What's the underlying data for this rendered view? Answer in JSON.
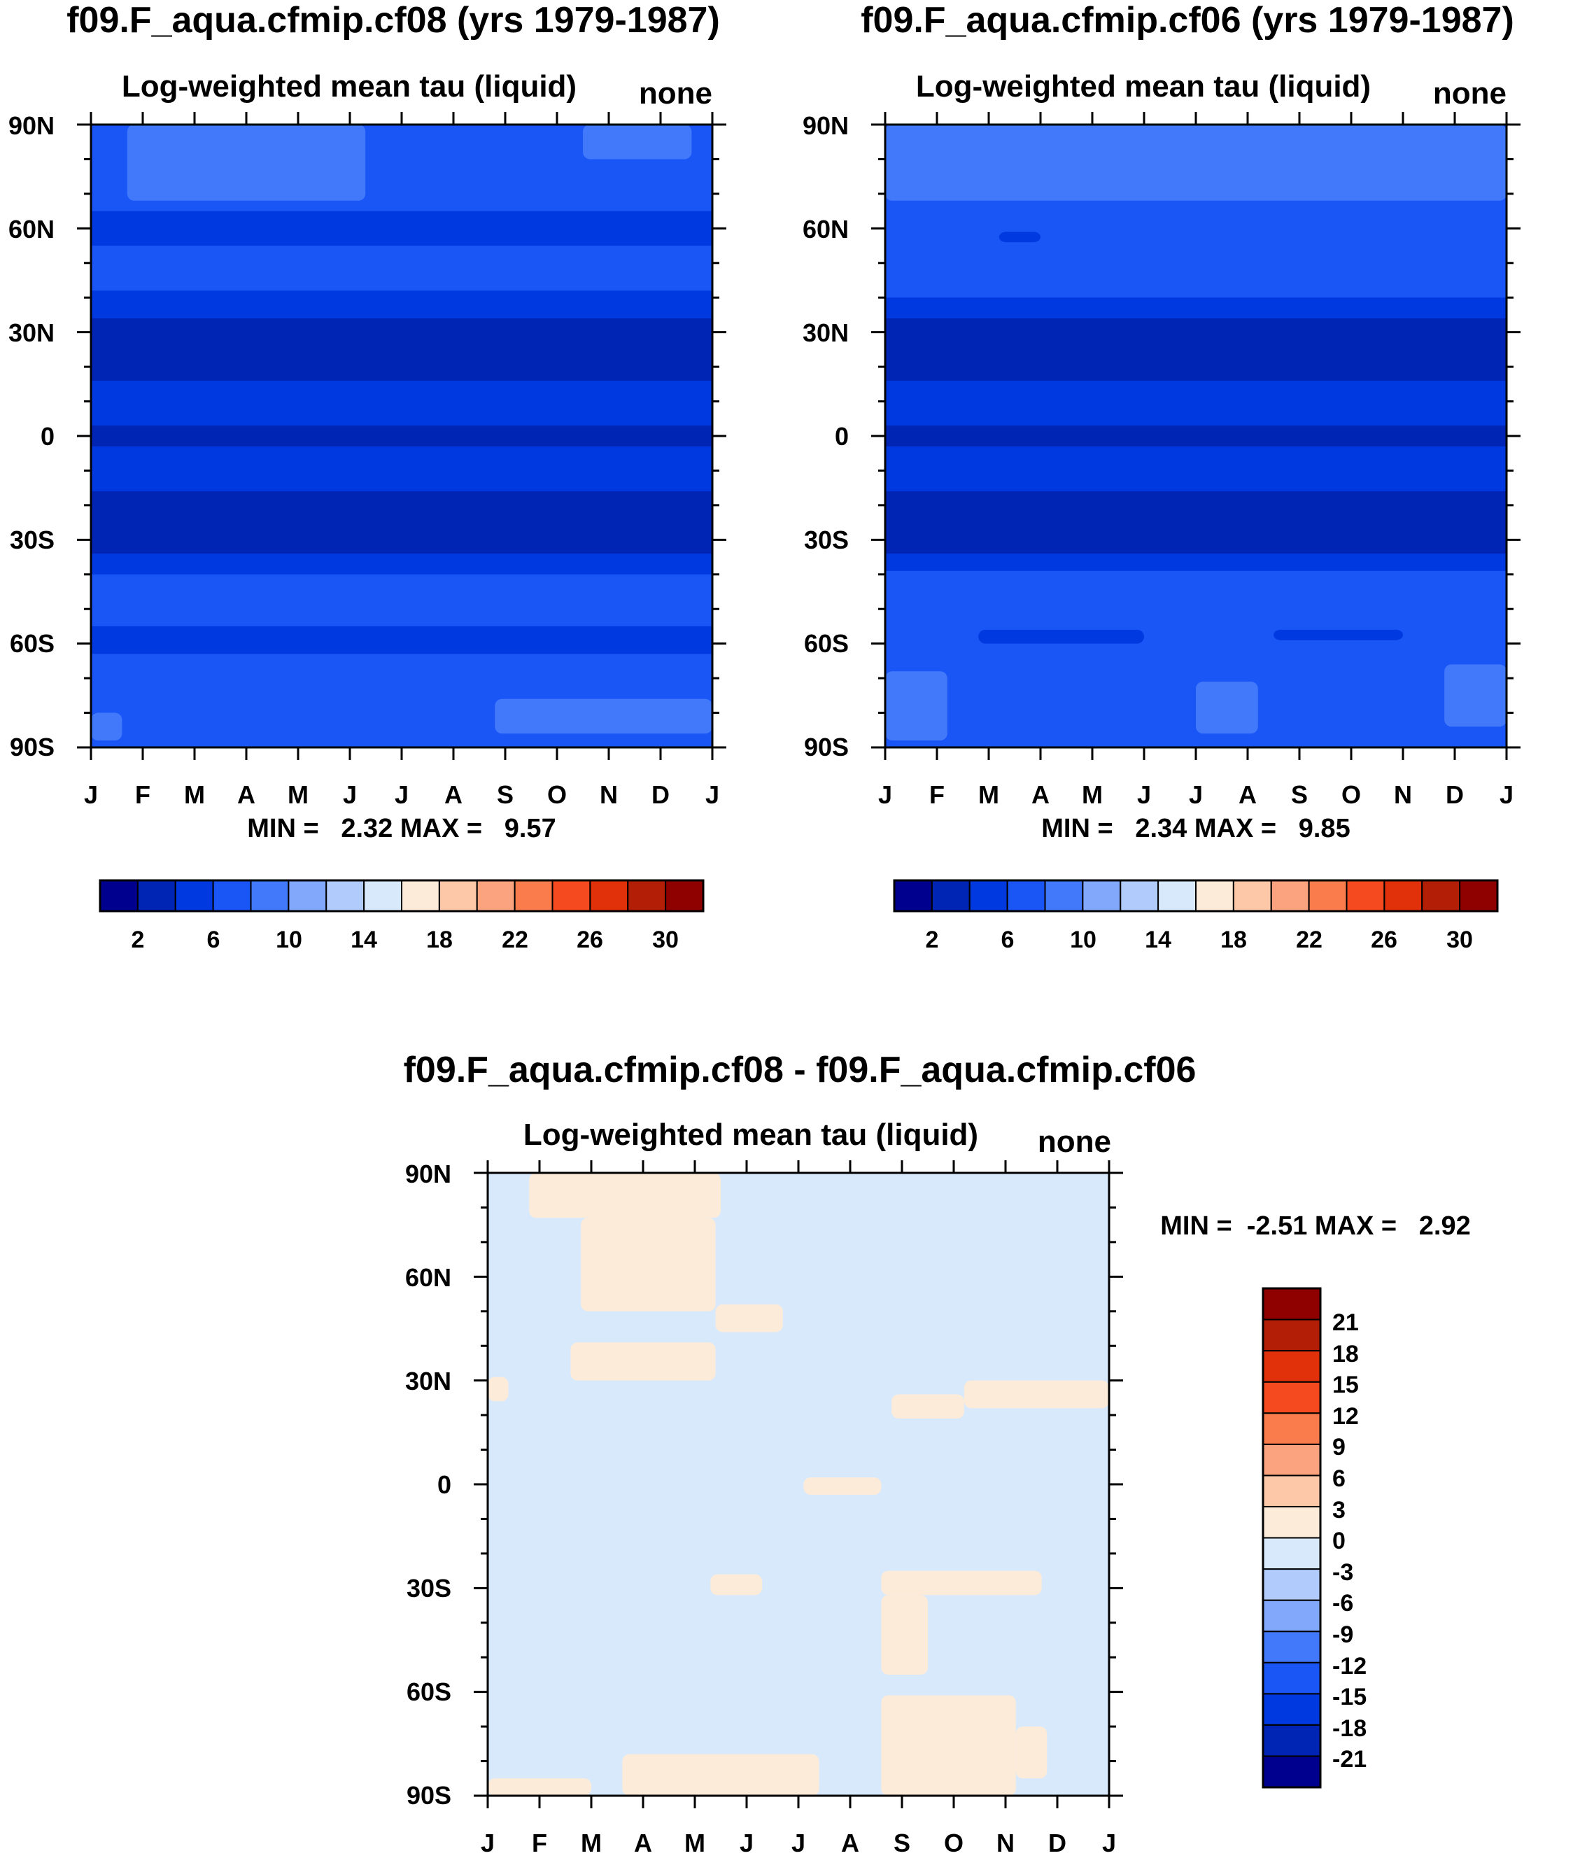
{
  "chart_data": [
    {
      "type": "heatmap",
      "title": "f09.F_aqua.cfmip.cf08 (yrs 1979-1987)",
      "subtitle": "Log-weighted mean tau (liquid)",
      "units": "none",
      "x_ticks": [
        "J",
        "F",
        "M",
        "A",
        "M",
        "J",
        "J",
        "A",
        "S",
        "O",
        "N",
        "D",
        "J"
      ],
      "y_ticks": [
        "90N",
        "60N",
        "30N",
        "0",
        "30S",
        "60S",
        "90S"
      ],
      "min_max_text": "MIN =   2.32 MAX =   9.57",
      "colorbar": {
        "orientation": "horizontal",
        "colors": [
          "#00008f",
          "#0024b3",
          "#0039e0",
          "#1a56f5",
          "#4279fa",
          "#82a8fc",
          "#b0cbfc",
          "#d9e9fc",
          "#fcebd9",
          "#fcc8a8",
          "#faa37e",
          "#fa7b4c",
          "#f54a20",
          "#e0310a",
          "#b31e06",
          "#8f0000"
        ],
        "labels": [
          "2",
          "6",
          "10",
          "14",
          "18",
          "22",
          "26",
          "30"
        ]
      },
      "bands": [
        {
          "lat_from": 90,
          "lat_to": 65,
          "color": "#1a56f5"
        },
        {
          "lat_from": 65,
          "lat_to": 55,
          "color": "#0039e0"
        },
        {
          "lat_from": 55,
          "lat_to": 42,
          "color": "#1a56f5"
        },
        {
          "lat_from": 42,
          "lat_to": 34,
          "color": "#0039e0"
        },
        {
          "lat_from": 34,
          "lat_to": 16,
          "color": "#0024b3"
        },
        {
          "lat_from": 16,
          "lat_to": 3,
          "color": "#0039e0"
        },
        {
          "lat_from": 3,
          "lat_to": -3,
          "color": "#0024b3"
        },
        {
          "lat_from": -3,
          "lat_to": -16,
          "color": "#0039e0"
        },
        {
          "lat_from": -16,
          "lat_to": -34,
          "color": "#0024b3"
        },
        {
          "lat_from": -34,
          "lat_to": -40,
          "color": "#0039e0"
        },
        {
          "lat_from": -40,
          "lat_to": -55,
          "color": "#1a56f5"
        },
        {
          "lat_from": -55,
          "lat_to": -63,
          "color": "#0039e0"
        },
        {
          "lat_from": -63,
          "lat_to": -90,
          "color": "#1a56f5"
        }
      ],
      "patches": [
        {
          "month_from": 0.7,
          "month_to": 5.3,
          "lat_from": 90,
          "lat_to": 68,
          "color": "#4279fa"
        },
        {
          "month_from": 9.5,
          "month_to": 11.6,
          "lat_from": 90,
          "lat_to": 80,
          "color": "#4279fa"
        },
        {
          "month_from": 7.8,
          "month_to": 12,
          "lat_from": -76,
          "lat_to": -86,
          "color": "#4279fa"
        },
        {
          "month_from": 0,
          "month_to": 0.6,
          "lat_from": -80,
          "lat_to": -88,
          "color": "#4279fa"
        }
      ]
    },
    {
      "type": "heatmap",
      "title": "f09.F_aqua.cfmip.cf06 (yrs 1979-1987)",
      "subtitle": "Log-weighted mean tau (liquid)",
      "units": "none",
      "x_ticks": [
        "J",
        "F",
        "M",
        "A",
        "M",
        "J",
        "J",
        "A",
        "S",
        "O",
        "N",
        "D",
        "J"
      ],
      "y_ticks": [
        "90N",
        "60N",
        "30N",
        "0",
        "30S",
        "60S",
        "90S"
      ],
      "min_max_text": "MIN =   2.34 MAX =   9.85",
      "colorbar": {
        "orientation": "horizontal",
        "colors": [
          "#00008f",
          "#0024b3",
          "#0039e0",
          "#1a56f5",
          "#4279fa",
          "#82a8fc",
          "#b0cbfc",
          "#d9e9fc",
          "#fcebd9",
          "#fcc8a8",
          "#faa37e",
          "#fa7b4c",
          "#f54a20",
          "#e0310a",
          "#b31e06",
          "#8f0000"
        ],
        "labels": [
          "2",
          "6",
          "10",
          "14",
          "18",
          "22",
          "26",
          "30"
        ]
      },
      "bands": [
        {
          "lat_from": 90,
          "lat_to": 64,
          "color": "#1a56f5"
        },
        {
          "lat_from": 64,
          "lat_to": 40,
          "color": "#1a56f5"
        },
        {
          "lat_from": 40,
          "lat_to": 34,
          "color": "#0039e0"
        },
        {
          "lat_from": 34,
          "lat_to": 16,
          "color": "#0024b3"
        },
        {
          "lat_from": 16,
          "lat_to": 3,
          "color": "#0039e0"
        },
        {
          "lat_from": 3,
          "lat_to": -3,
          "color": "#0024b3"
        },
        {
          "lat_from": -3,
          "lat_to": -16,
          "color": "#0039e0"
        },
        {
          "lat_from": -16,
          "lat_to": -34,
          "color": "#0024b3"
        },
        {
          "lat_from": -34,
          "lat_to": -39,
          "color": "#0039e0"
        },
        {
          "lat_from": -39,
          "lat_to": -90,
          "color": "#1a56f5"
        }
      ],
      "patches": [
        {
          "month_from": 0,
          "month_to": 12,
          "lat_from": 90,
          "lat_to": 68,
          "color": "#4279fa"
        },
        {
          "month_from": 2.2,
          "month_to": 3.0,
          "lat_from": 59,
          "lat_to": 56,
          "color": "#0039e0"
        },
        {
          "month_from": 1.8,
          "month_to": 5.0,
          "lat_from": -56,
          "lat_to": -60,
          "color": "#0039e0"
        },
        {
          "month_from": 7.5,
          "month_to": 10.0,
          "lat_from": -56,
          "lat_to": -59,
          "color": "#0039e0"
        },
        {
          "month_from": 0,
          "month_to": 1.2,
          "lat_from": -68,
          "lat_to": -88,
          "color": "#4279fa"
        },
        {
          "month_from": 6.0,
          "month_to": 7.2,
          "lat_from": -71,
          "lat_to": -86,
          "color": "#4279fa"
        },
        {
          "month_from": 10.8,
          "month_to": 12,
          "lat_from": -66,
          "lat_to": -84,
          "color": "#4279fa"
        }
      ]
    },
    {
      "type": "heatmap",
      "title": "f09.F_aqua.cfmip.cf08 - f09.F_aqua.cfmip.cf06",
      "subtitle": "Log-weighted mean tau (liquid)",
      "units": "none",
      "x_ticks": [
        "J",
        "F",
        "M",
        "A",
        "M",
        "J",
        "J",
        "A",
        "S",
        "O",
        "N",
        "D",
        "J"
      ],
      "y_ticks": [
        "90N",
        "60N",
        "30N",
        "0",
        "30S",
        "60S",
        "90S"
      ],
      "min_max_text": "MIN =  -2.51 MAX =   2.92",
      "colorbar": {
        "orientation": "vertical",
        "colors": [
          "#00008f",
          "#0024b3",
          "#0039e0",
          "#1a56f5",
          "#4279fa",
          "#82a8fc",
          "#b0cbfc",
          "#d9e9fc",
          "#fcebd9",
          "#fcc8a8",
          "#faa37e",
          "#fa7b4c",
          "#f54a20",
          "#e0310a",
          "#b31e06",
          "#8f0000"
        ],
        "labels": [
          "-21",
          "-18",
          "-15",
          "-12",
          "-9",
          "-6",
          "-3",
          "0",
          "3",
          "6",
          "9",
          "12",
          "15",
          "18",
          "21"
        ]
      },
      "bands": [
        {
          "lat_from": 90,
          "lat_to": -90,
          "color": "#d9e9fc"
        }
      ],
      "patches": [
        {
          "month_from": 0.8,
          "month_to": 4.5,
          "lat_from": 90,
          "lat_to": 77,
          "color": "#fcebd9"
        },
        {
          "month_from": 1.8,
          "month_to": 4.4,
          "lat_from": 77,
          "lat_to": 50,
          "color": "#fcebd9"
        },
        {
          "month_from": 4.4,
          "month_to": 5.7,
          "lat_from": 52,
          "lat_to": 44,
          "color": "#fcebd9"
        },
        {
          "month_from": 1.6,
          "month_to": 4.4,
          "lat_from": 41,
          "lat_to": 30,
          "color": "#fcebd9"
        },
        {
          "month_from": 0,
          "month_to": 0.4,
          "lat_from": 31,
          "lat_to": 24,
          "color": "#fcebd9"
        },
        {
          "month_from": 7.8,
          "month_to": 9.2,
          "lat_from": 26,
          "lat_to": 19,
          "color": "#fcebd9"
        },
        {
          "month_from": 9.2,
          "month_to": 12,
          "lat_from": 30,
          "lat_to": 22,
          "color": "#fcebd9"
        },
        {
          "month_from": 6.1,
          "month_to": 7.6,
          "lat_from": 2,
          "lat_to": -3,
          "color": "#fcebd9"
        },
        {
          "month_from": 4.3,
          "month_to": 5.3,
          "lat_from": -26,
          "lat_to": -32,
          "color": "#fcebd9"
        },
        {
          "month_from": 7.6,
          "month_to": 10.7,
          "lat_from": -25,
          "lat_to": -32,
          "color": "#fcebd9"
        },
        {
          "month_from": 7.6,
          "month_to": 8.5,
          "lat_from": -32,
          "lat_to": -55,
          "color": "#fcebd9"
        },
        {
          "month_from": 7.6,
          "month_to": 10.2,
          "lat_from": -61,
          "lat_to": -90,
          "color": "#fcebd9"
        },
        {
          "month_from": 10.2,
          "month_to": 10.8,
          "lat_from": -70,
          "lat_to": -85,
          "color": "#fcebd9"
        },
        {
          "month_from": 0,
          "month_to": 2.0,
          "lat_from": -85,
          "lat_to": -90,
          "color": "#fcebd9"
        },
        {
          "month_from": 2.6,
          "month_to": 6.4,
          "lat_from": -78,
          "lat_to": -90,
          "color": "#fcebd9"
        }
      ]
    }
  ]
}
